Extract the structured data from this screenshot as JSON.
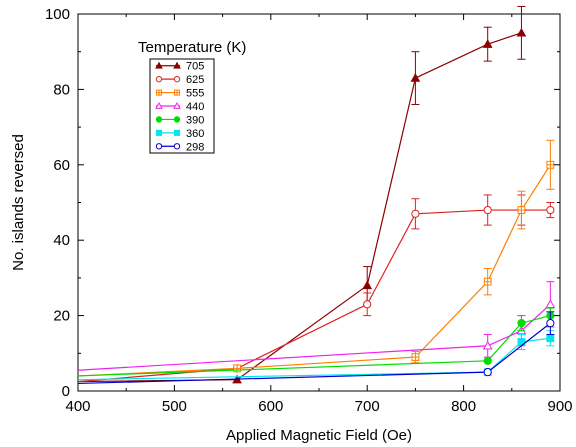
{
  "chart_data": {
    "type": "line",
    "title": "",
    "xlabel": "Applied Magnetic Field (Oe)",
    "ylabel": "No. islands reversed",
    "xlim": [
      400,
      900
    ],
    "ylim": [
      0,
      100
    ],
    "xticks": [
      400,
      500,
      600,
      700,
      800,
      900
    ],
    "yticks": [
      0,
      20,
      40,
      60,
      80,
      100
    ],
    "grid": false,
    "legend": {
      "title": "Temperature (K)",
      "placement": "top-left"
    },
    "series": [
      {
        "name": "705",
        "color": "#8b0000",
        "marker": "triangle-filled",
        "points": [
          [
            400,
            2.5
          ],
          [
            565,
            3
          ],
          [
            700,
            28
          ],
          [
            750,
            83
          ],
          [
            825,
            92
          ],
          [
            860,
            95
          ]
        ],
        "errors": [
          null,
          null,
          5,
          7,
          4.5,
          7
        ]
      },
      {
        "name": "625",
        "color": "#dd2222",
        "marker": "circle-open",
        "points": [
          [
            400,
            2.5
          ],
          [
            565,
            6
          ],
          [
            700,
            23
          ],
          [
            750,
            47
          ],
          [
            825,
            48
          ],
          [
            860,
            48
          ],
          [
            890,
            48
          ]
        ],
        "errors": [
          null,
          null,
          3,
          4,
          4,
          4,
          2
        ]
      },
      {
        "name": "555",
        "color": "#ff7f00",
        "marker": "square-open",
        "points": [
          [
            400,
            4
          ],
          [
            565,
            6
          ],
          [
            750,
            9
          ],
          [
            825,
            29
          ],
          [
            860,
            48
          ],
          [
            890,
            60
          ]
        ],
        "errors": [
          null,
          null,
          1.5,
          3.5,
          5,
          6.5
        ]
      },
      {
        "name": "440",
        "color": "#ee22ee",
        "marker": "triangle-open",
        "points": [
          [
            400,
            5.5
          ],
          [
            825,
            12
          ],
          [
            860,
            16
          ],
          [
            890,
            23
          ]
        ],
        "errors": [
          null,
          3,
          4,
          6
        ]
      },
      {
        "name": "390",
        "color": "#00dd00",
        "marker": "circle-filled",
        "points": [
          [
            400,
            4
          ],
          [
            825,
            8
          ],
          [
            860,
            18
          ],
          [
            890,
            20
          ]
        ],
        "errors": [
          null,
          null,
          2,
          2
        ]
      },
      {
        "name": "360",
        "color": "#00e5ee",
        "marker": "square-filled",
        "points": [
          [
            400,
            3
          ],
          [
            825,
            5
          ],
          [
            860,
            13
          ],
          [
            890,
            14
          ]
        ],
        "errors": [
          null,
          null,
          2,
          2
        ]
      },
      {
        "name": "298",
        "color": "#0000cc",
        "marker": "circle-open",
        "points": [
          [
            400,
            2
          ],
          [
            825,
            5
          ],
          [
            890,
            18
          ]
        ],
        "errors": [
          null,
          null,
          3
        ]
      }
    ]
  }
}
